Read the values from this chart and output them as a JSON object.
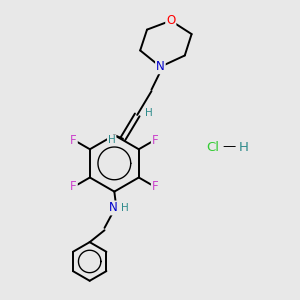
{
  "background_color": "#e8e8e8",
  "figsize": [
    3.0,
    3.0
  ],
  "dpi": 100,
  "bond_color": "#000000",
  "bond_lw": 1.4,
  "atom_colors": {
    "N": "#0000cc",
    "O": "#ff0000",
    "F": "#cc44cc",
    "H": "#2e8b8b",
    "Cl": "#33cc33"
  },
  "font_size": 8.5,
  "small_font": 7.5,
  "hcl_font": 9.5,
  "xlim": [
    0,
    10
  ],
  "ylim": [
    0,
    10
  ]
}
